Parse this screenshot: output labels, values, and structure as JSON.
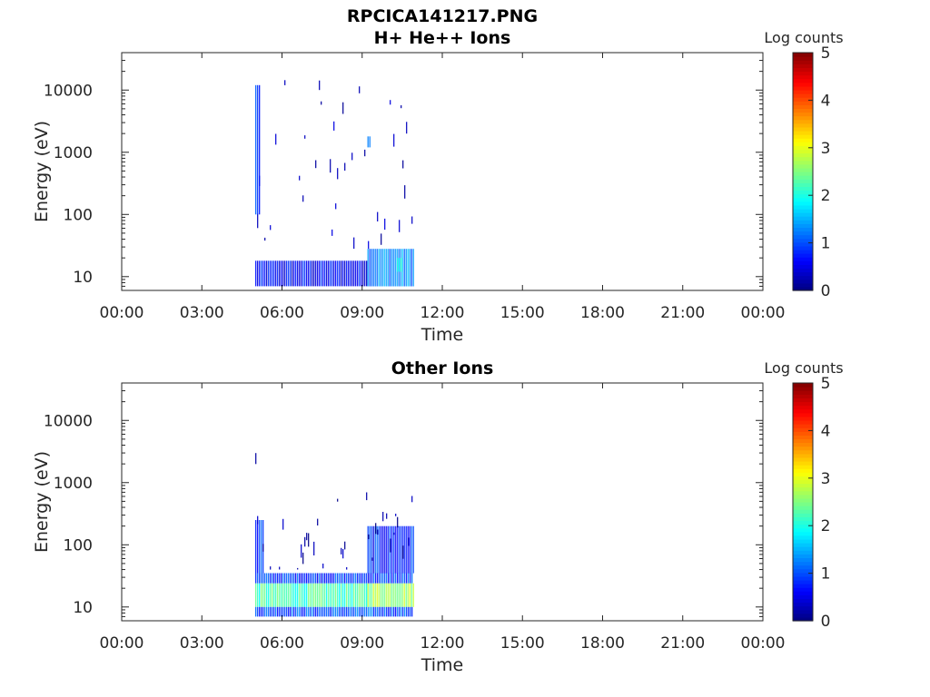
{
  "figure_title": "RPCICA141217.PNG",
  "colorbar_label": "Log counts",
  "colormap": "jet",
  "chart_data": [
    {
      "type": "heatmap",
      "title": "H+ He++ Ions",
      "xlabel": "Time",
      "ylabel": "Energy (eV)",
      "xticks": [
        "00:00",
        "03:00",
        "06:00",
        "09:00",
        "12:00",
        "15:00",
        "18:00",
        "21:00",
        "00:00"
      ],
      "xlim_hours": [
        0,
        24
      ],
      "yticks": [
        "10",
        "100",
        "1000",
        "10000"
      ],
      "yscale": "log",
      "ylim": [
        6,
        40000
      ],
      "colorbar": {
        "label": "Log counts",
        "ticks": [
          "0",
          "1",
          "2",
          "3",
          "4",
          "5"
        ],
        "range": [
          0,
          5
        ]
      },
      "data_time_range_hours": [
        5.0,
        10.9
      ],
      "regions": [
        {
          "t_start": 5.0,
          "t_end": 9.2,
          "e_min": 7,
          "e_max": 18,
          "log_counts": 0.6
        },
        {
          "t_start": 9.2,
          "t_end": 10.9,
          "e_min": 7,
          "e_max": 28,
          "log_counts": 1.3
        },
        {
          "t_start": 10.3,
          "t_end": 10.5,
          "e_min": 12,
          "e_max": 20,
          "log_counts": 1.9
        },
        {
          "t_start": 5.0,
          "t_end": 10.9,
          "e_min": 28,
          "e_max": 15000,
          "log_counts": 0.3
        },
        {
          "t_start": 5.0,
          "t_end": 5.15,
          "e_min": 100,
          "e_max": 12000,
          "log_counts": 1.0
        },
        {
          "t_start": 9.2,
          "t_end": 9.3,
          "e_min": 1200,
          "e_max": 1800,
          "log_counts": 1.2
        }
      ]
    },
    {
      "type": "heatmap",
      "title": "Other Ions",
      "xlabel": "Time",
      "ylabel": "Energy (eV)",
      "xticks": [
        "00:00",
        "03:00",
        "06:00",
        "09:00",
        "12:00",
        "15:00",
        "18:00",
        "21:00",
        "00:00"
      ],
      "xlim_hours": [
        0,
        24
      ],
      "yticks": [
        "10",
        "100",
        "1000",
        "10000"
      ],
      "yscale": "log",
      "ylim": [
        6,
        40000
      ],
      "colorbar": {
        "label": "Log counts",
        "ticks": [
          "0",
          "1",
          "2",
          "3",
          "4",
          "5"
        ],
        "range": [
          0,
          5
        ]
      },
      "data_time_range_hours": [
        5.0,
        10.9
      ],
      "regions": [
        {
          "t_start": 5.0,
          "t_end": 9.2,
          "e_min": 10,
          "e_max": 24,
          "log_counts": 2.2
        },
        {
          "t_start": 9.2,
          "t_end": 10.9,
          "e_min": 10,
          "e_max": 24,
          "log_counts": 2.7
        },
        {
          "t_start": 5.0,
          "t_end": 10.9,
          "e_min": 7,
          "e_max": 10,
          "log_counts": 1.0
        },
        {
          "t_start": 5.0,
          "t_end": 10.9,
          "e_min": 24,
          "e_max": 35,
          "log_counts": 0.9
        },
        {
          "t_start": 9.2,
          "t_end": 10.9,
          "e_min": 35,
          "e_max": 200,
          "log_counts": 0.8
        },
        {
          "t_start": 5.0,
          "t_end": 5.3,
          "e_min": 35,
          "e_max": 250,
          "log_counts": 0.9
        },
        {
          "t_start": 5.0,
          "t_end": 10.9,
          "e_min": 40,
          "e_max": 700,
          "log_counts": 0.2
        },
        {
          "t_start": 5.0,
          "t_end": 5.1,
          "e_min": 700,
          "e_max": 20000,
          "log_counts": 0.1
        }
      ]
    }
  ]
}
